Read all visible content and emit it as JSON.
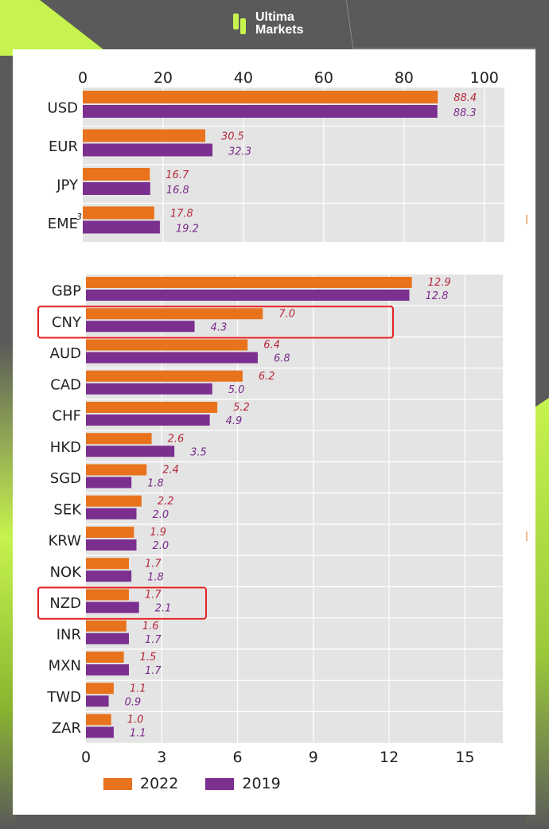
{
  "brand": {
    "line1": "Ultima",
    "line2": "Markets"
  },
  "colors": {
    "series_2022": "#e8731c",
    "series_2019": "#7b2f8e",
    "highlight": "#e32222",
    "plot_bg": "#e4e4e4",
    "accent": "#c6f34e"
  },
  "chart_data": [
    {
      "type": "bar",
      "orientation": "horizontal",
      "categories": [
        "USD",
        "EUR",
        "JPY",
        "EME"
      ],
      "category_superscripts": {
        "EME": "3"
      },
      "series": [
        {
          "name": "2022",
          "values": [
            88.4,
            30.5,
            16.7,
            17.8
          ],
          "labels": [
            "88.4",
            "30.5",
            "16.7",
            "17.8"
          ]
        },
        {
          "name": "2019",
          "values": [
            88.3,
            32.3,
            16.8,
            19.2
          ],
          "labels": [
            "88.3",
            "32.3",
            "16.8",
            "19.2"
          ]
        }
      ],
      "xlim": [
        0,
        105
      ],
      "xticks": [
        "0",
        "20",
        "40",
        "60",
        "80",
        "100"
      ],
      "xtick_values": [
        0,
        20,
        40,
        60,
        80,
        100
      ],
      "axis_position": "top",
      "grid": true
    },
    {
      "type": "bar",
      "orientation": "horizontal",
      "categories": [
        "GBP",
        "CNY",
        "AUD",
        "CAD",
        "CHF",
        "HKD",
        "SGD",
        "SEK",
        "KRW",
        "NOK",
        "NZD",
        "INR",
        "MXN",
        "TWD",
        "ZAR"
      ],
      "highlighted": [
        "CNY",
        "NZD"
      ],
      "series": [
        {
          "name": "2022",
          "values": [
            12.9,
            7.0,
            6.4,
            6.2,
            5.2,
            2.6,
            2.4,
            2.2,
            1.9,
            1.7,
            1.7,
            1.6,
            1.5,
            1.1,
            1.0
          ],
          "labels": [
            "12.9",
            "7.0",
            "6.4",
            "6.2",
            "5.2",
            "2.6",
            "2.4",
            "2.2",
            "1.9",
            "1.7",
            "1.7",
            "1.6",
            "1.5",
            "1.1",
            "1.0"
          ]
        },
        {
          "name": "2019",
          "values": [
            12.8,
            4.3,
            6.8,
            5.0,
            4.9,
            3.5,
            1.8,
            2.0,
            2.0,
            1.8,
            2.1,
            1.7,
            1.7,
            0.9,
            1.1
          ],
          "labels": [
            "12.8",
            "4.3",
            "6.8",
            "5.0",
            "4.9",
            "3.5",
            "1.8",
            "2.0",
            "2.0",
            "1.8",
            "2.1",
            "1.7",
            "1.7",
            "0.9",
            "1.1"
          ]
        }
      ],
      "xlim": [
        0,
        16.5
      ],
      "xticks": [
        "0",
        "3",
        "6",
        "9",
        "12",
        "15"
      ],
      "xtick_values": [
        0,
        3,
        6,
        9,
        12,
        15
      ],
      "axis_position": "bottom",
      "grid": true
    }
  ],
  "legend": {
    "items": [
      "2022",
      "2019"
    ],
    "placement": "bottom"
  }
}
